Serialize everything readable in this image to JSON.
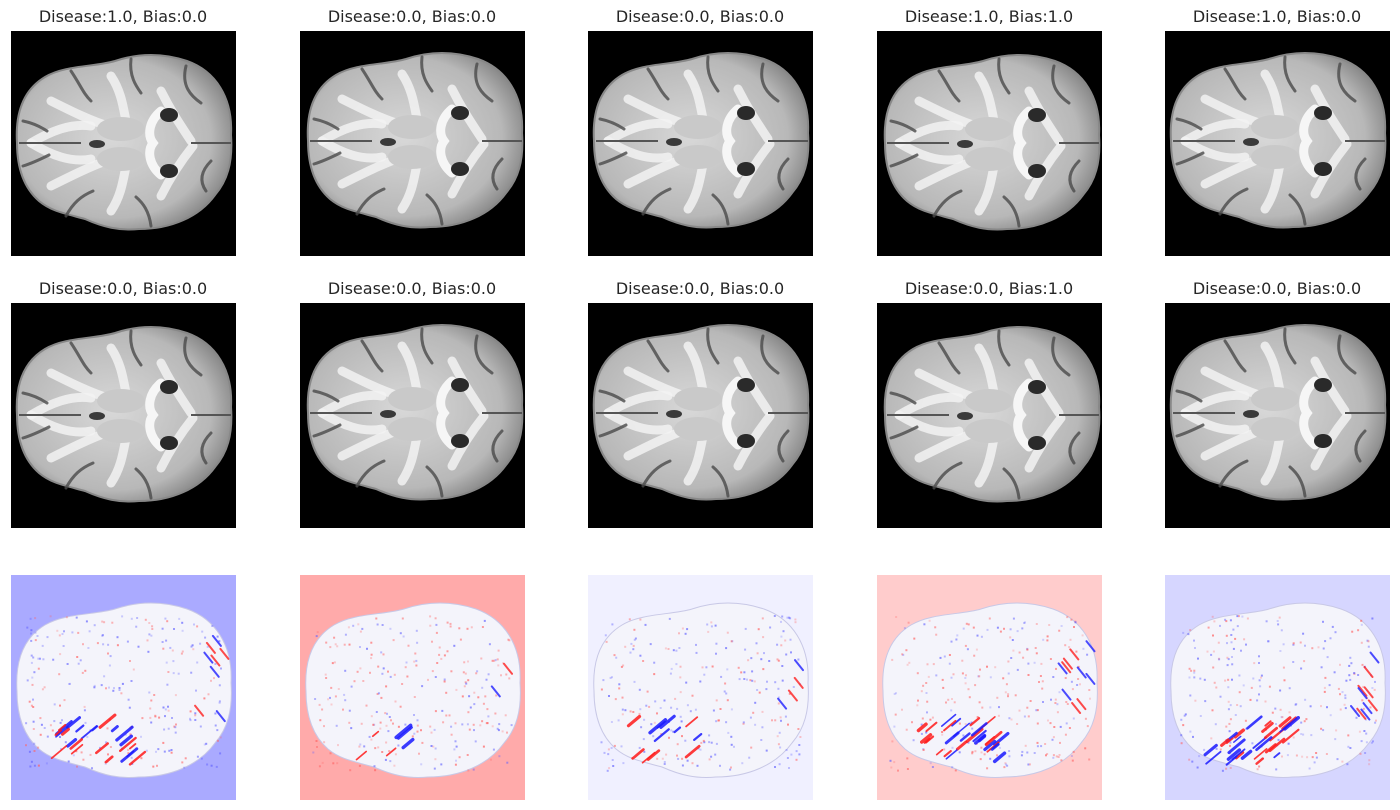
{
  "figure": {
    "rows": [
      {
        "kind": "original-mri",
        "panels": [
          {
            "title": "Disease:1.0, Bias:0.0",
            "disease": 1.0,
            "bias": 0.0
          },
          {
            "title": "Disease:0.0, Bias:0.0",
            "disease": 0.0,
            "bias": 0.0
          },
          {
            "title": "Disease:0.0, Bias:0.0",
            "disease": 0.0,
            "bias": 0.0
          },
          {
            "title": "Disease:1.0, Bias:1.0",
            "disease": 1.0,
            "bias": 1.0
          },
          {
            "title": "Disease:1.0, Bias:0.0",
            "disease": 1.0,
            "bias": 0.0
          }
        ]
      },
      {
        "kind": "counterfactual-mri",
        "panels": [
          {
            "title": "Disease:0.0, Bias:0.0",
            "disease": 0.0,
            "bias": 0.0
          },
          {
            "title": "Disease:0.0, Bias:0.0",
            "disease": 0.0,
            "bias": 0.0
          },
          {
            "title": "Disease:0.0, Bias:0.0",
            "disease": 0.0,
            "bias": 0.0
          },
          {
            "title": "Disease:0.0, Bias:1.0",
            "disease": 0.0,
            "bias": 1.0
          },
          {
            "title": "Disease:0.0, Bias:0.0",
            "disease": 0.0,
            "bias": 0.0
          }
        ]
      },
      {
        "kind": "difference-map",
        "colormap": "bwr",
        "panels": [
          {
            "background": "#aaaaff"
          },
          {
            "background": "#ffaaaa"
          },
          {
            "background": "#f0f0ff"
          },
          {
            "background": "#ffcccc"
          },
          {
            "background": "#d6d6ff"
          }
        ]
      }
    ]
  }
}
